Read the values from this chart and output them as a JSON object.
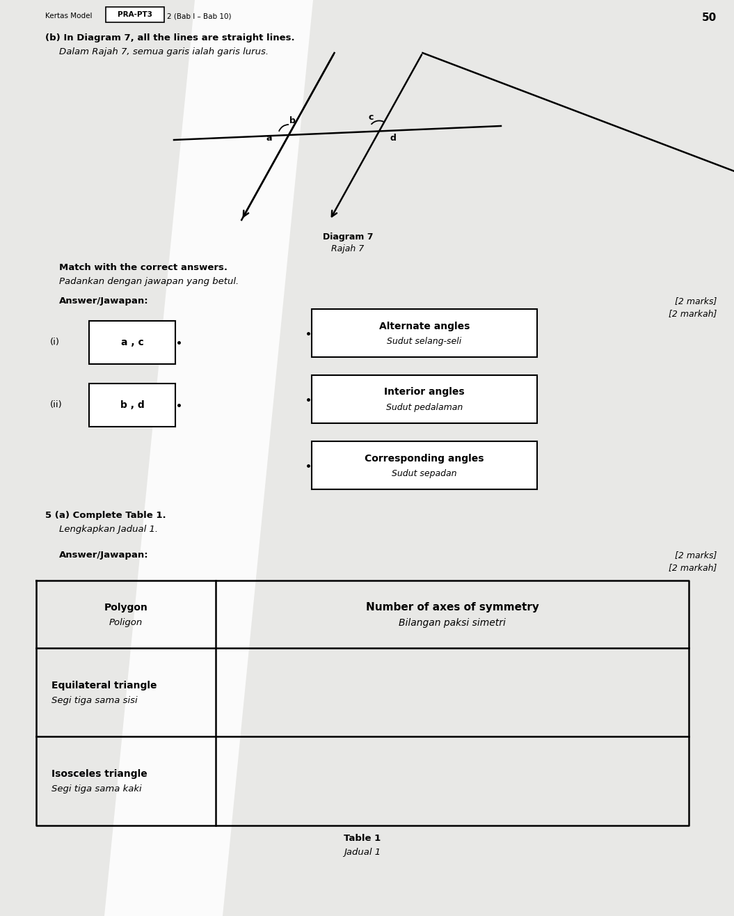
{
  "bg_color": "#c8c8c8",
  "paper_color": "#e8e8e6",
  "header_text": "Kertas Model",
  "header_box_text": "PRA-PT3",
  "header_suffix": "2 (Bab I – Bab 10)",
  "page_number": "50",
  "question_b_title": "(b) In Diagram 7, all the lines are straight lines.",
  "question_b_title_malay": "Dalam Rajah 7, semua garis ialah garis lurus.",
  "diagram_label": "Diagram 7",
  "diagram_label_malay": "Rajah 7",
  "match_instruction": "Match with the correct answers.",
  "match_instruction_malay": "Padankan dengan jawapan yang betul.",
  "answer_label": "Answer/Jawapan:",
  "marks_right": "[2 marks]",
  "markah_right": "[2 markah]",
  "item_i_label": "(i)",
  "item_i_content": "a , c",
  "item_ii_label": "(ii)",
  "item_ii_content": "b , d",
  "answer1_line1": "Alternate angles",
  "answer1_line2": "Sudut selang-seli",
  "answer2_line1": "Interior angles",
  "answer2_line2": "Sudut pedalaman",
  "answer3_line1": "Corresponding angles",
  "answer3_line2": "Sudut sepadan",
  "q5_title": "5 (a) Complete Table 1.",
  "q5_title_malay": "Lengkapkan Jadual 1.",
  "q5_marks": "[2 marks]",
  "q5_markah": "[2 markah]",
  "q5_answer": "Answer/Jawapan:",
  "table_col1_header_line1": "Polygon",
  "table_col1_header_line2": "Poligon",
  "table_col2_header_line1": "Number of axes of symmetry",
  "table_col2_header_line2": "Bilangan paksi simetri",
  "table_row1_col1_line1": "Equilateral triangle",
  "table_row1_col1_line2": "Segi tiga sama sisi",
  "table_row2_col1_line1": "Isosceles triangle",
  "table_row2_col1_line2": "Segi tiga sama kaki",
  "table_caption_line1": "Table 1",
  "table_caption_line2": "Jadual 1",
  "light_beam_color": "#f5f5f3",
  "light_beam_alpha": 0.85
}
